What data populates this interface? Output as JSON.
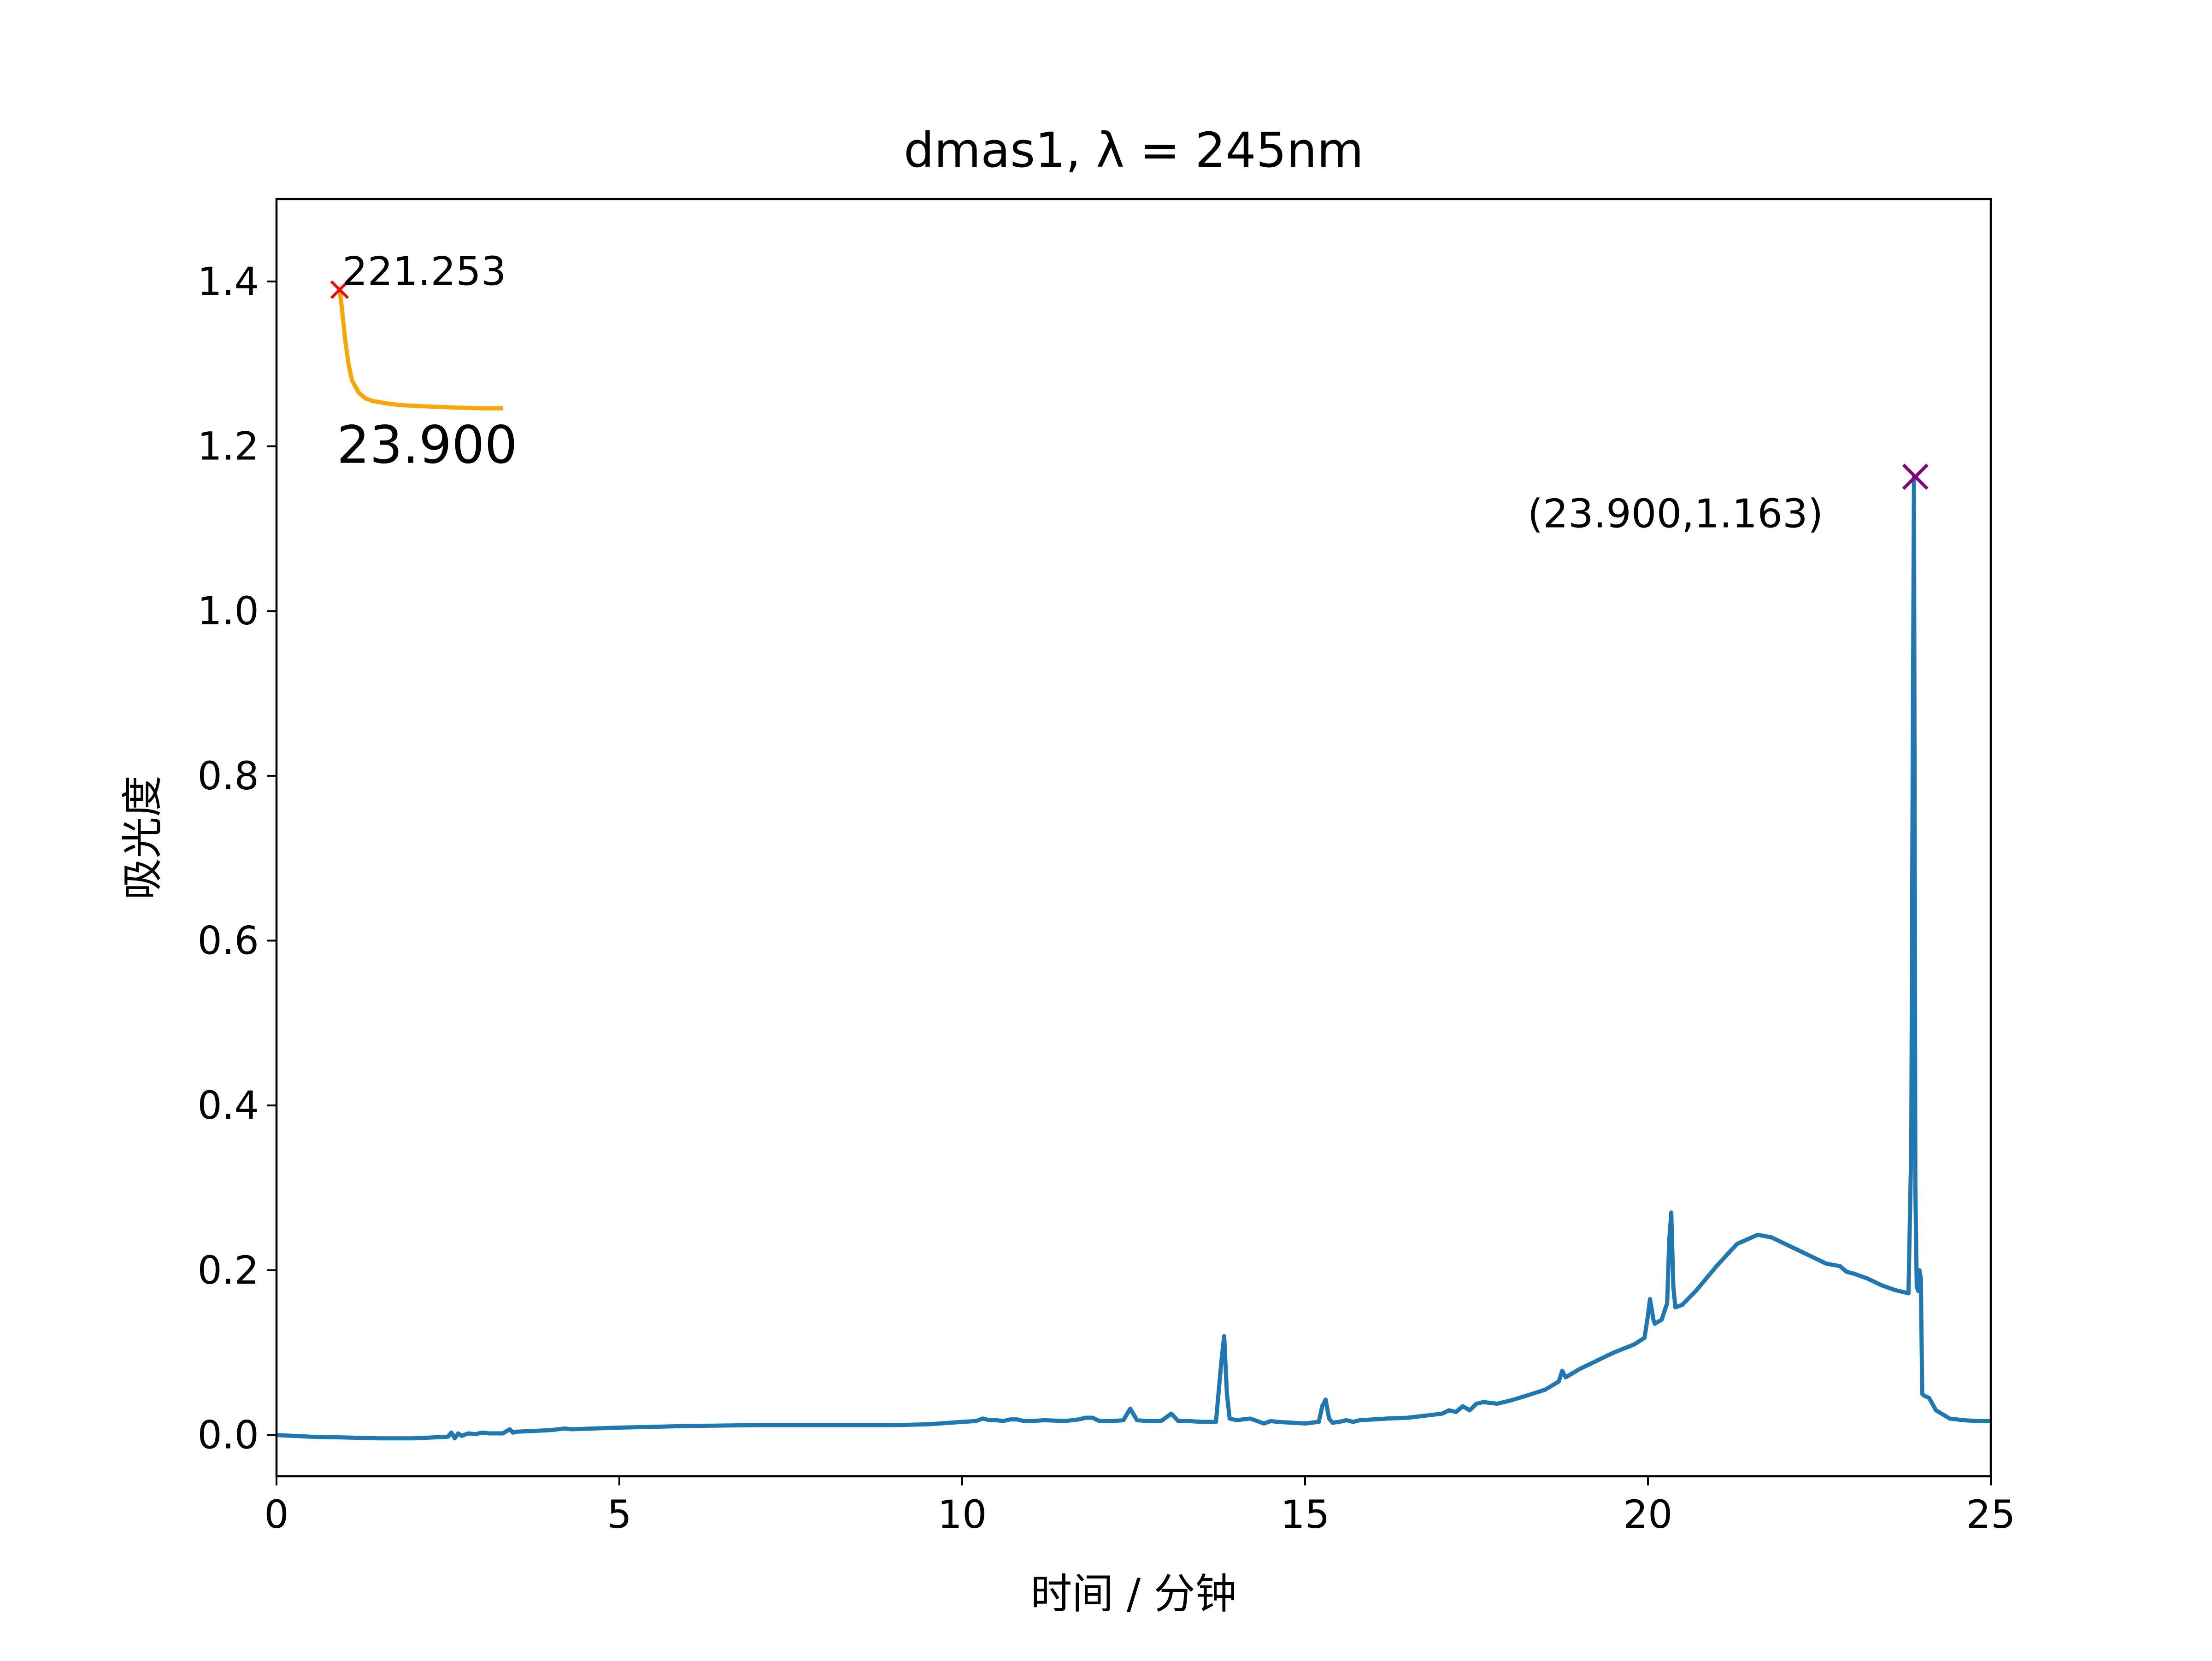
{
  "chart_data": {
    "type": "line",
    "title": "dmas1, λ = 245nm",
    "xlabel": "时间 / 分钟",
    "ylabel": "吸光度",
    "xlim": [
      0,
      25
    ],
    "ylim": [
      -0.05,
      1.5
    ],
    "xticks": [
      0,
      5,
      10,
      15,
      20,
      25
    ],
    "xtick_labels": [
      "0",
      "5",
      "10",
      "15",
      "20",
      "25"
    ],
    "yticks": [
      0.0,
      0.2,
      0.4,
      0.6,
      0.8,
      1.0,
      1.2,
      1.4
    ],
    "ytick_labels": [
      "0.0",
      "0.2",
      "0.4",
      "0.6",
      "0.8",
      "1.0",
      "1.2",
      "1.4"
    ],
    "grid": false,
    "colors": {
      "main_series": "#1f77b4",
      "inset_series": "#ffa500",
      "inset_marker": "#ff0000",
      "peak_marker": "#800080"
    },
    "series": [
      {
        "x": [
          0,
          0.5,
          1.0,
          1.5,
          2.0,
          2.5,
          2.55,
          2.6,
          2.65,
          2.7,
          2.8,
          2.9,
          3.0,
          3.1,
          3.3,
          3.4,
          3.45,
          3.5,
          4.0,
          4.2,
          4.3,
          5.0,
          6.0,
          7.0,
          8.0,
          9.0,
          9.5,
          10.0,
          10.2,
          10.3,
          10.4,
          10.5,
          10.6,
          10.7,
          10.8,
          10.9,
          11.0,
          11.2,
          11.5,
          11.7,
          11.8,
          11.9,
          12.0,
          12.2,
          12.35,
          12.45,
          12.55,
          12.7,
          12.9,
          13.05,
          13.15,
          13.3,
          13.5,
          13.7,
          13.78,
          13.82,
          13.86,
          13.9,
          14.0,
          14.2,
          14.4,
          14.5,
          14.6,
          14.8,
          15.0,
          15.2,
          15.25,
          15.3,
          15.35,
          15.4,
          15.5,
          15.6,
          15.7,
          15.8,
          16.0,
          16.2,
          16.5,
          16.8,
          17.0,
          17.1,
          17.2,
          17.3,
          17.4,
          17.5,
          17.6,
          17.8,
          18.0,
          18.2,
          18.5,
          18.7,
          18.75,
          18.8,
          19.0,
          19.2,
          19.5,
          19.8,
          19.95,
          20.0,
          20.03,
          20.08,
          20.1,
          20.2,
          20.28,
          20.31,
          20.34,
          20.37,
          20.4,
          20.5,
          20.7,
          21.0,
          21.3,
          21.6,
          21.8,
          22.0,
          22.3,
          22.6,
          22.8,
          22.9,
          23.0,
          23.2,
          23.4,
          23.6,
          23.8,
          23.84,
          23.86,
          23.88,
          23.9,
          23.92,
          23.94,
          23.96,
          23.98,
          24.0,
          24.02,
          24.1,
          24.2,
          24.4,
          24.6,
          24.8,
          25.0
        ],
        "y": [
          0.0,
          -0.002,
          -0.003,
          -0.004,
          -0.004,
          -0.002,
          0.003,
          -0.004,
          0.002,
          -0.001,
          0.002,
          0.001,
          0.003,
          0.002,
          0.002,
          0.007,
          0.003,
          0.004,
          0.006,
          0.008,
          0.007,
          0.009,
          0.011,
          0.012,
          0.012,
          0.012,
          0.013,
          0.016,
          0.017,
          0.02,
          0.018,
          0.018,
          0.017,
          0.019,
          0.019,
          0.017,
          0.017,
          0.018,
          0.017,
          0.019,
          0.021,
          0.021,
          0.017,
          0.017,
          0.018,
          0.032,
          0.018,
          0.017,
          0.017,
          0.026,
          0.017,
          0.017,
          0.016,
          0.016,
          0.09,
          0.12,
          0.05,
          0.02,
          0.018,
          0.02,
          0.014,
          0.017,
          0.016,
          0.015,
          0.014,
          0.016,
          0.035,
          0.043,
          0.02,
          0.015,
          0.016,
          0.018,
          0.016,
          0.018,
          0.019,
          0.02,
          0.021,
          0.024,
          0.026,
          0.03,
          0.028,
          0.035,
          0.03,
          0.038,
          0.04,
          0.038,
          0.042,
          0.047,
          0.055,
          0.065,
          0.078,
          0.07,
          0.08,
          0.088,
          0.1,
          0.11,
          0.118,
          0.145,
          0.165,
          0.14,
          0.135,
          0.14,
          0.16,
          0.235,
          0.27,
          0.18,
          0.155,
          0.158,
          0.175,
          0.205,
          0.232,
          0.243,
          0.24,
          0.232,
          0.22,
          0.208,
          0.205,
          0.198,
          0.196,
          0.19,
          0.182,
          0.176,
          0.172,
          0.35,
          0.8,
          1.163,
          0.3,
          0.18,
          0.175,
          0.2,
          0.19,
          0.05,
          0.048,
          0.045,
          0.03,
          0.02,
          0.018,
          0.017,
          0.017
        ]
      }
    ],
    "annotations": [
      {
        "text": "(23.900,1.163)",
        "x": 23.9,
        "y": 1.163,
        "marker": "x"
      }
    ],
    "inset": {
      "peak_label": "221.253",
      "caption": "23.900",
      "curve_x": [
        0.92,
        0.95,
        1.0,
        1.05,
        1.1,
        1.2,
        1.3,
        1.4,
        1.6,
        1.8,
        2.0,
        2.3,
        2.6,
        3.0,
        3.3
      ],
      "curve_y": [
        1.39,
        1.37,
        1.33,
        1.3,
        1.28,
        1.265,
        1.258,
        1.255,
        1.252,
        1.25,
        1.249,
        1.248,
        1.247,
        1.246,
        1.246
      ],
      "marker_x": 0.92,
      "marker_y": 1.39
    }
  }
}
